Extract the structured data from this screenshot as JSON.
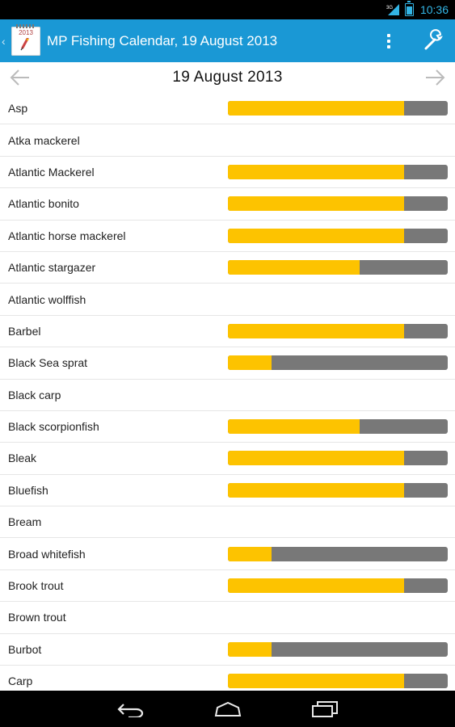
{
  "status_bar": {
    "network_label": "3G",
    "time": "10:36"
  },
  "action_bar": {
    "app_icon_year": "2013",
    "title": "MP Fishing Calendar, 19 August 2013"
  },
  "date_nav": {
    "date": "19 August 2013"
  },
  "fish": [
    {
      "name": "Asp",
      "rating": 0.8
    },
    {
      "name": "Atka mackerel",
      "rating": null
    },
    {
      "name": "Atlantic Mackerel",
      "rating": 0.8
    },
    {
      "name": "Atlantic bonito",
      "rating": 0.8
    },
    {
      "name": "Atlantic horse mackerel",
      "rating": 0.8
    },
    {
      "name": "Atlantic stargazer",
      "rating": 0.6
    },
    {
      "name": "Atlantic wolffish",
      "rating": null
    },
    {
      "name": "Barbel",
      "rating": 0.8
    },
    {
      "name": "Black Sea sprat",
      "rating": 0.2
    },
    {
      "name": "Black carp",
      "rating": null
    },
    {
      "name": "Black scorpionfish",
      "rating": 0.6
    },
    {
      "name": "Bleak",
      "rating": 0.8
    },
    {
      "name": "Bluefish",
      "rating": 0.8
    },
    {
      "name": "Bream",
      "rating": null
    },
    {
      "name": "Broad whitefish",
      "rating": 0.2
    },
    {
      "name": "Brook trout",
      "rating": 0.8
    },
    {
      "name": "Brown trout",
      "rating": null
    },
    {
      "name": "Burbot",
      "rating": 0.2
    },
    {
      "name": "Carp",
      "rating": 0.8
    }
  ],
  "colors": {
    "action_bar": "#1a98d5",
    "bar_fill": "#fdc300",
    "bar_track": "#787878",
    "status_accent": "#33b5e5"
  }
}
